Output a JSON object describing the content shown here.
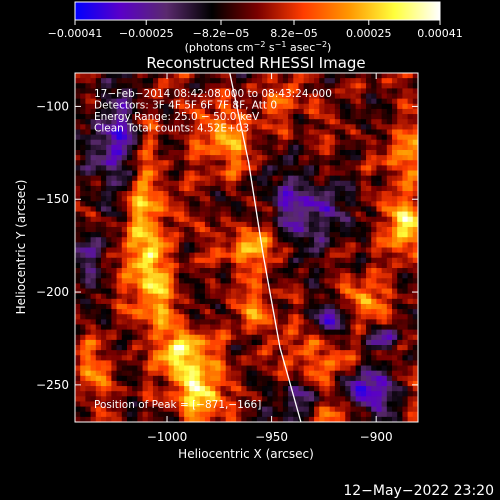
{
  "chart_data": {
    "type": "heatmap",
    "title": "Reconstructed RHESSI Image",
    "xlabel": "Heliocentric X (arcsec)",
    "ylabel": "Heliocentric Y (arcsec)",
    "xlim": [
      -1044,
      -880
    ],
    "ylim": [
      -270,
      -82
    ],
    "x_ticks": [
      -1000,
      -950,
      -900
    ],
    "x_tick_labels": [
      "−1000",
      "−950",
      "−900"
    ],
    "y_ticks": [
      -100,
      -150,
      -200,
      -250
    ],
    "y_tick_labels": [
      "−100",
      "−150",
      "−200",
      "−250"
    ],
    "grid": false,
    "colorbar": {
      "colormap": "hot-diverging",
      "colors": [
        "#0000ff",
        "#5a00c8",
        "#5a2a6e",
        "#000000",
        "#7a0000",
        "#ff3c00",
        "#ff9600",
        "#ffff3c",
        "#ffffff"
      ],
      "range": [
        -0.00041,
        0.00041
      ],
      "ticks": [
        -0.00041,
        -0.00025,
        -8.2e-05,
        8.2e-05,
        0.00025,
        0.00041
      ],
      "tick_labels": [
        "−0.00041",
        "−0.00025",
        "−8.2e−05",
        "8.2e−05",
        "0.00025",
        "0.00041"
      ],
      "unit_label": {
        "prefix": "(photons cm",
        "exp1": "−2",
        "mid1": " s",
        "exp2": "−1",
        "mid2": " asec",
        "exp3": "−2",
        "suffix": ")"
      }
    },
    "info_lines": [
      "17−Feb−2014 08:42:08.000 to 08:43:24.000",
      "Detectors: 3F 4F 5F 6F 7F 8F, Att 0",
      "Energy Range: 25.0 − 50.0 keV",
      "Clean     Total counts: 4.52E+03"
    ],
    "peak_label": "Position of Peak = [−871,−166]",
    "limb_curve": [
      [
        -970,
        -82
      ],
      [
        -961,
        -130
      ],
      [
        -954,
        -180
      ],
      [
        -946,
        -230
      ],
      [
        -936,
        -270
      ]
    ],
    "hot_regions": [
      {
        "x": -990,
        "y": -236,
        "sx": 9,
        "sy": 11,
        "a": 1.0
      },
      {
        "x": -986,
        "y": -258,
        "sx": 7,
        "sy": 7,
        "a": 0.85
      },
      {
        "x": -1010,
        "y": -150,
        "sx": 6,
        "sy": 28,
        "a": 0.8
      },
      {
        "x": -1006,
        "y": -200,
        "sx": 8,
        "sy": 16,
        "a": 0.6
      },
      {
        "x": -970,
        "y": -120,
        "sx": 10,
        "sy": 12,
        "a": 0.55
      },
      {
        "x": -960,
        "y": -175,
        "sx": 12,
        "sy": 9,
        "a": 0.6
      },
      {
        "x": -958,
        "y": -210,
        "sx": 7,
        "sy": 8,
        "a": 0.45
      },
      {
        "x": -948,
        "y": -100,
        "sx": 9,
        "sy": 6,
        "a": 0.35
      },
      {
        "x": -925,
        "y": -235,
        "sx": 8,
        "sy": 10,
        "a": 0.55
      },
      {
        "x": -905,
        "y": -205,
        "sx": 9,
        "sy": 7,
        "a": 0.45
      },
      {
        "x": -884,
        "y": -165,
        "sx": 7,
        "sy": 12,
        "a": 0.95
      },
      {
        "x": -888,
        "y": -125,
        "sx": 7,
        "sy": 10,
        "a": 0.6
      },
      {
        "x": -918,
        "y": -265,
        "sx": 10,
        "sy": 5,
        "a": 0.5
      },
      {
        "x": -1035,
        "y": -240,
        "sx": 6,
        "sy": 10,
        "a": 0.5
      }
    ],
    "cold_regions": [
      {
        "x": -1025,
        "y": -120,
        "sx": 9,
        "sy": 18,
        "a": 0.9
      },
      {
        "x": -935,
        "y": -155,
        "sx": 12,
        "sy": 14,
        "a": 0.75
      },
      {
        "x": -905,
        "y": -255,
        "sx": 9,
        "sy": 9,
        "a": 0.9
      },
      {
        "x": -920,
        "y": -215,
        "sx": 6,
        "sy": 7,
        "a": 0.8
      },
      {
        "x": -895,
        "y": -225,
        "sx": 5,
        "sy": 5,
        "a": 0.7
      },
      {
        "x": -938,
        "y": -260,
        "sx": 8,
        "sy": 7,
        "a": 0.6
      },
      {
        "x": -1040,
        "y": -180,
        "sx": 5,
        "sy": 10,
        "a": 0.6
      }
    ]
  },
  "footer_date": "12−May−2022 23:20"
}
